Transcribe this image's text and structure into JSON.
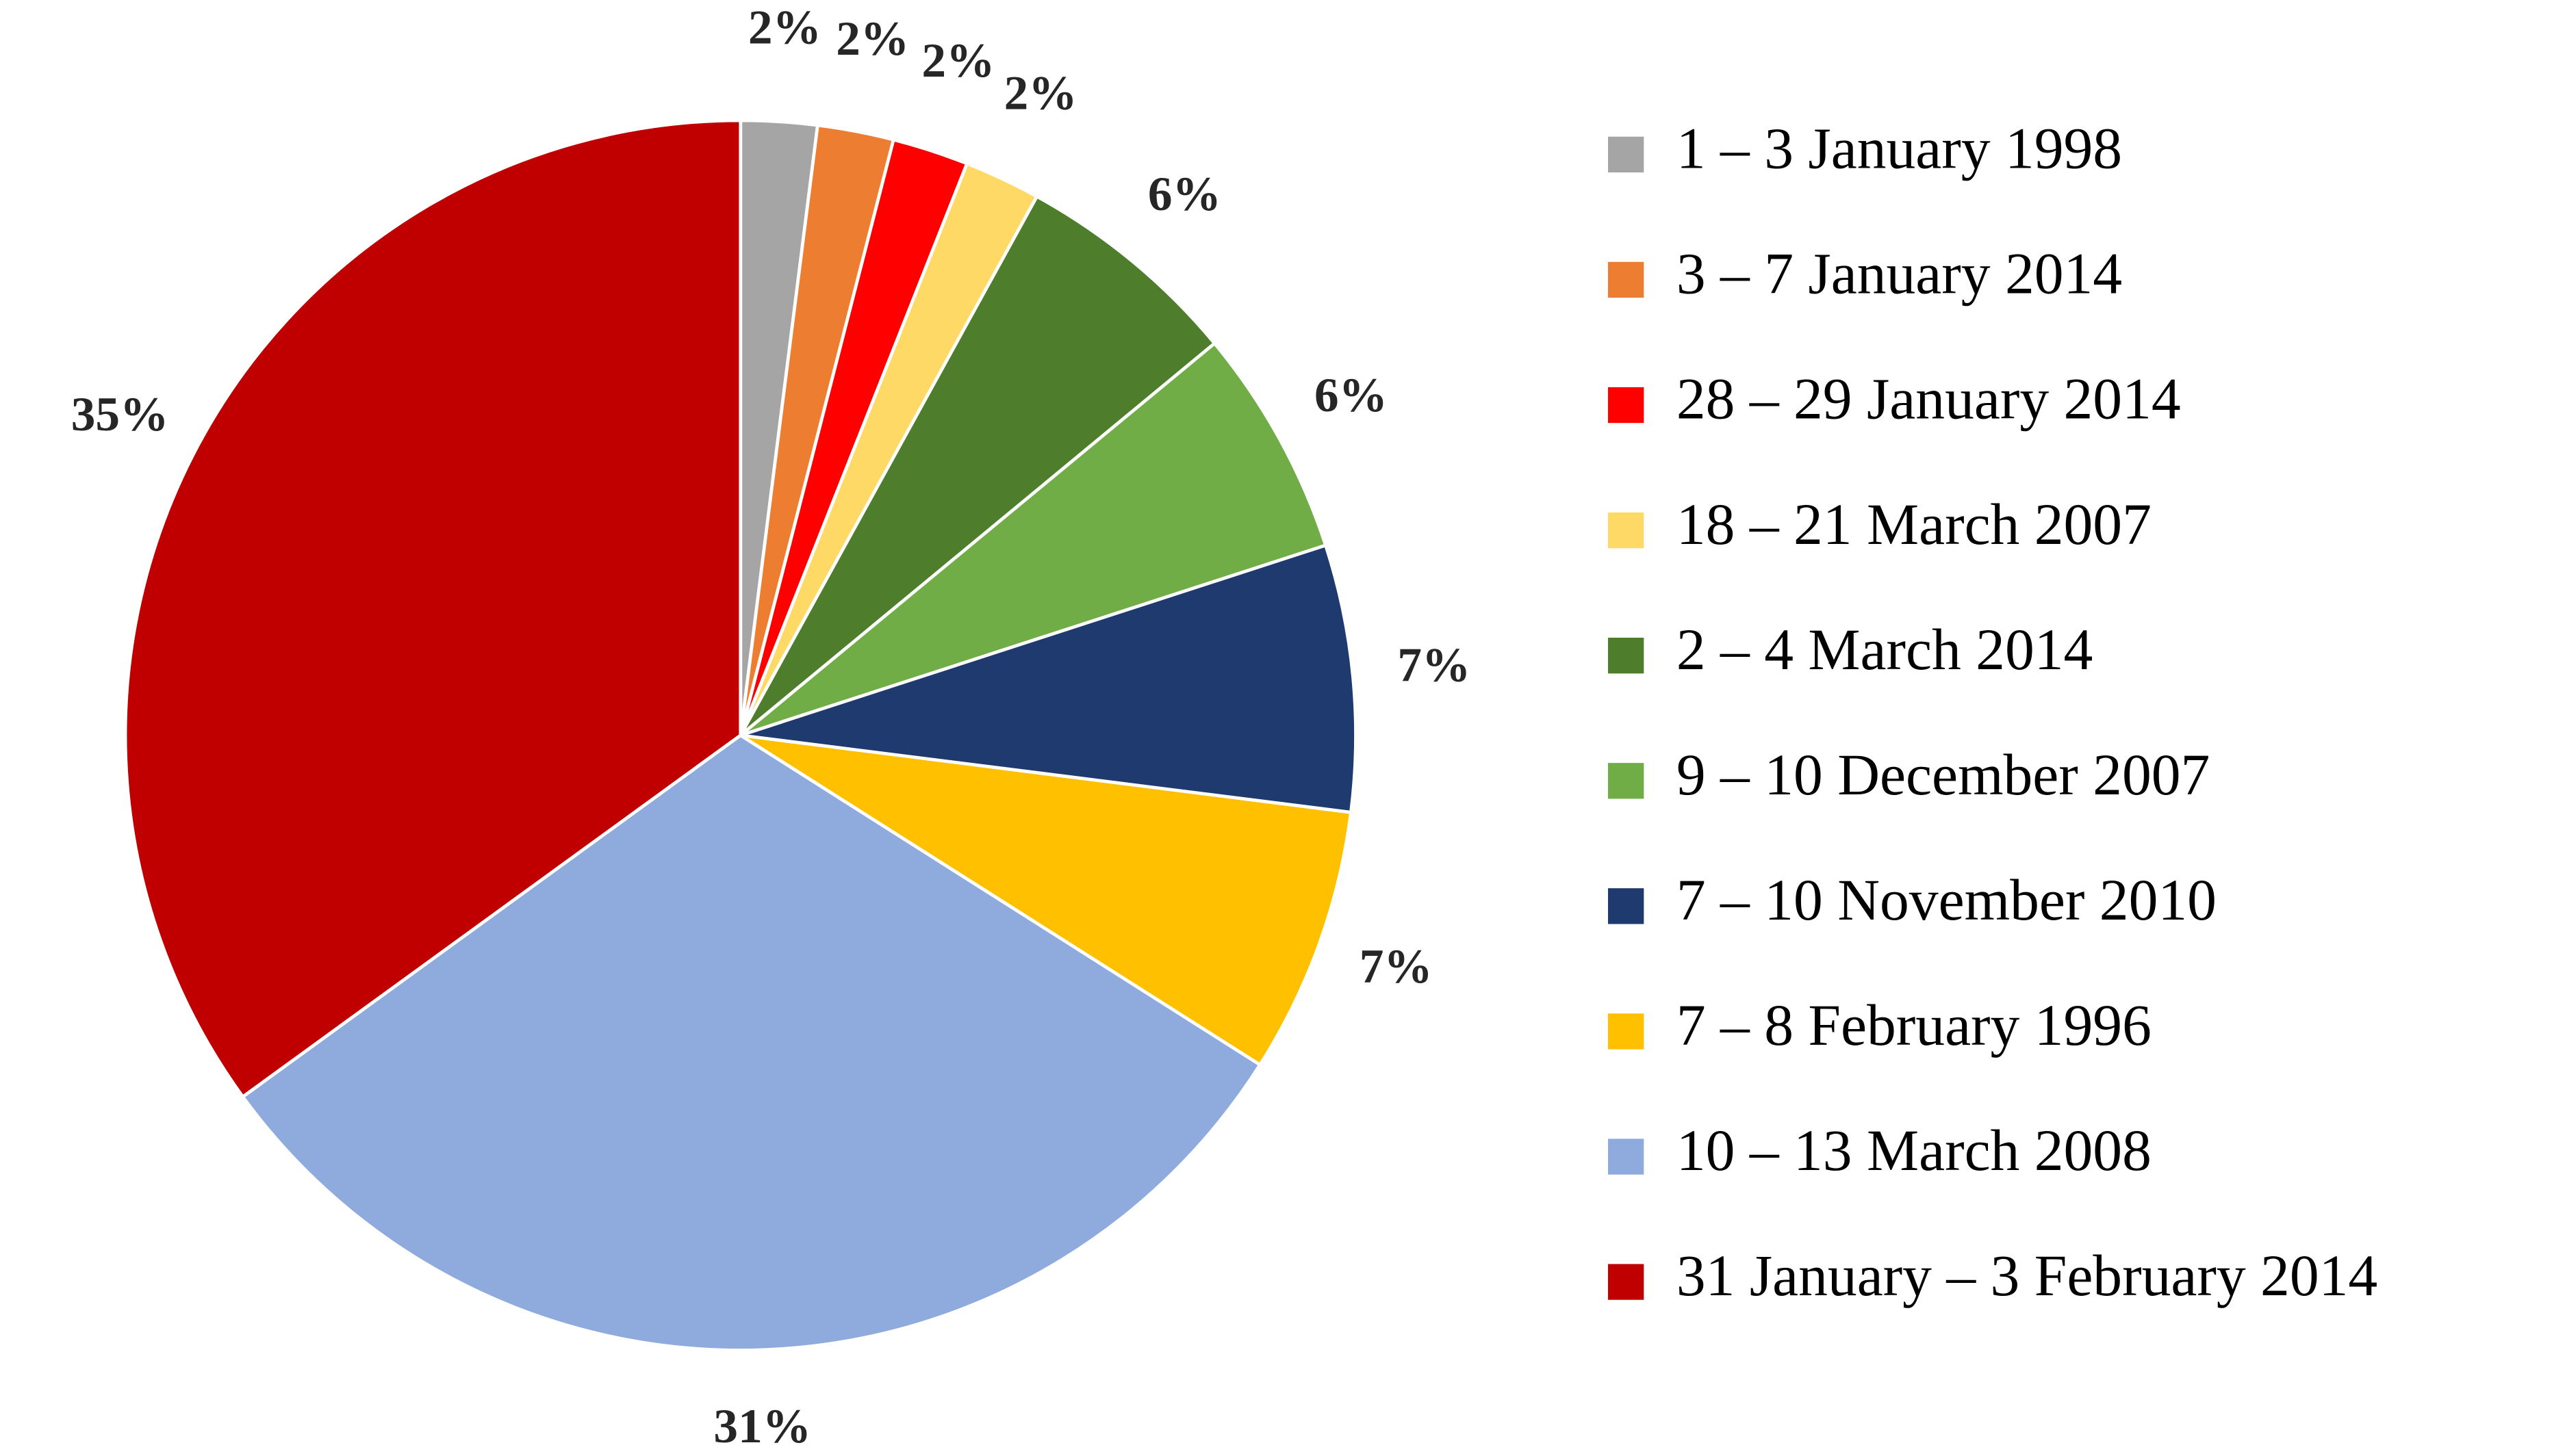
{
  "chart_data": {
    "type": "pie",
    "categories": [
      "1 – 3 January 1998",
      "3 – 7 January 2014",
      "28 – 29 January 2014",
      "18 – 21 March 2007",
      "2 – 4 March 2014",
      "9 – 10 December 2007",
      "7 – 10 November 2010",
      "7 – 8 February 1996",
      "10 – 13 March 2008",
      "31 January – 3 February 2014"
    ],
    "values": [
      2,
      2,
      2,
      2,
      6,
      6,
      7,
      7,
      31,
      35
    ],
    "value_labels": [
      "2%",
      "2%",
      "2%",
      "2%",
      "6%",
      "6%",
      "7%",
      "7%",
      "31%",
      "35%"
    ],
    "colors": [
      "#a5a5a5",
      "#ed7d31",
      "#ff0000",
      "#ffd966",
      "#4e7d2c",
      "#70ad47",
      "#1f3a6e",
      "#ffc000",
      "#8faadc",
      "#c00000"
    ],
    "legend": "right"
  }
}
